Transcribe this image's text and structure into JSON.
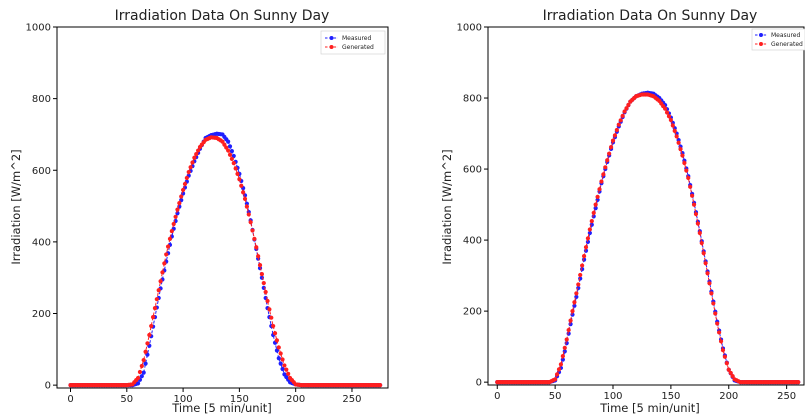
{
  "chart_data": [
    {
      "type": "scatter",
      "title": "Irradiation Data On Sunny Day",
      "xlabel": "Time [5 min/unit]",
      "ylabel": "Irradiation [W/m^2]",
      "xlim": [
        -12,
        282
      ],
      "ylim": [
        -8,
        1000
      ],
      "xticks": [
        0,
        50,
        100,
        150,
        200,
        250
      ],
      "yticks": [
        0,
        200,
        400,
        600,
        800,
        1000
      ],
      "grid": false,
      "legend_position": "top-right",
      "series": [
        {
          "name": "Measured",
          "color": "#1f1fff",
          "marker": "circle",
          "line_style": "dashed",
          "x": [
            0,
            50,
            55,
            60,
            65,
            70,
            75,
            80,
            85,
            90,
            95,
            100,
            105,
            110,
            115,
            120,
            125,
            130,
            135,
            140,
            145,
            150,
            155,
            160,
            165,
            170,
            175,
            180,
            185,
            190,
            195,
            200,
            205,
            210,
            250,
            275
          ],
          "y": [
            0,
            0,
            0,
            5,
            35,
            110,
            190,
            270,
            345,
            415,
            480,
            535,
            585,
            625,
            660,
            690,
            698,
            702,
            700,
            680,
            640,
            590,
            530,
            460,
            380,
            300,
            215,
            140,
            75,
            30,
            8,
            2,
            0,
            0,
            0,
            0
          ]
        },
        {
          "name": "Generated",
          "color": "#ff1f1f",
          "marker": "circle",
          "line_style": "dashed",
          "x": [
            0,
            50,
            55,
            60,
            65,
            70,
            75,
            80,
            85,
            90,
            95,
            100,
            105,
            110,
            115,
            120,
            125,
            130,
            135,
            140,
            145,
            150,
            155,
            160,
            165,
            170,
            175,
            180,
            185,
            190,
            195,
            200,
            205,
            210,
            250,
            275
          ],
          "y": [
            0,
            0,
            2,
            20,
            70,
            140,
            215,
            290,
            365,
            430,
            490,
            545,
            595,
            635,
            665,
            685,
            692,
            690,
            680,
            655,
            620,
            575,
            520,
            455,
            385,
            310,
            235,
            165,
            105,
            55,
            20,
            2,
            0,
            0,
            0,
            0
          ]
        }
      ]
    },
    {
      "type": "scatter",
      "title": "Irradiation Data On Sunny Day",
      "xlabel": "Time [5 min/unit]",
      "ylabel": "Irradiation [W/m^2]",
      "xlim": [
        -8,
        265
      ],
      "ylim": [
        -8,
        1000
      ],
      "xticks": [
        0,
        50,
        100,
        150,
        200,
        250
      ],
      "yticks": [
        0,
        200,
        400,
        600,
        800,
        1000
      ],
      "grid": false,
      "legend_position": "top-right",
      "series": [
        {
          "name": "Measured",
          "color": "#1f1fff",
          "marker": "circle",
          "line_style": "dashed",
          "x": [
            0,
            45,
            50,
            55,
            60,
            65,
            70,
            75,
            80,
            85,
            90,
            95,
            100,
            105,
            110,
            115,
            120,
            125,
            130,
            135,
            140,
            145,
            150,
            155,
            160,
            165,
            170,
            175,
            180,
            185,
            190,
            195,
            200,
            205,
            210,
            215,
            260
          ],
          "y": [
            0,
            0,
            5,
            40,
            110,
            190,
            265,
            345,
            420,
            490,
            560,
            620,
            675,
            720,
            760,
            790,
            805,
            812,
            815,
            812,
            800,
            780,
            745,
            700,
            645,
            580,
            505,
            425,
            340,
            255,
            170,
            95,
            35,
            5,
            0,
            0,
            0
          ]
        },
        {
          "name": "Generated",
          "color": "#ff1f1f",
          "marker": "circle",
          "line_style": "dashed",
          "x": [
            0,
            45,
            50,
            55,
            60,
            65,
            70,
            75,
            80,
            85,
            90,
            95,
            100,
            105,
            110,
            115,
            120,
            125,
            130,
            135,
            140,
            145,
            150,
            155,
            160,
            165,
            170,
            175,
            180,
            185,
            190,
            195,
            200,
            205,
            210,
            215,
            260
          ],
          "y": [
            0,
            0,
            8,
            50,
            120,
            200,
            275,
            355,
            430,
            500,
            565,
            625,
            680,
            725,
            762,
            790,
            805,
            810,
            810,
            805,
            792,
            770,
            738,
            692,
            638,
            575,
            500,
            420,
            335,
            250,
            165,
            90,
            35,
            8,
            0,
            0,
            0
          ]
        }
      ]
    }
  ]
}
